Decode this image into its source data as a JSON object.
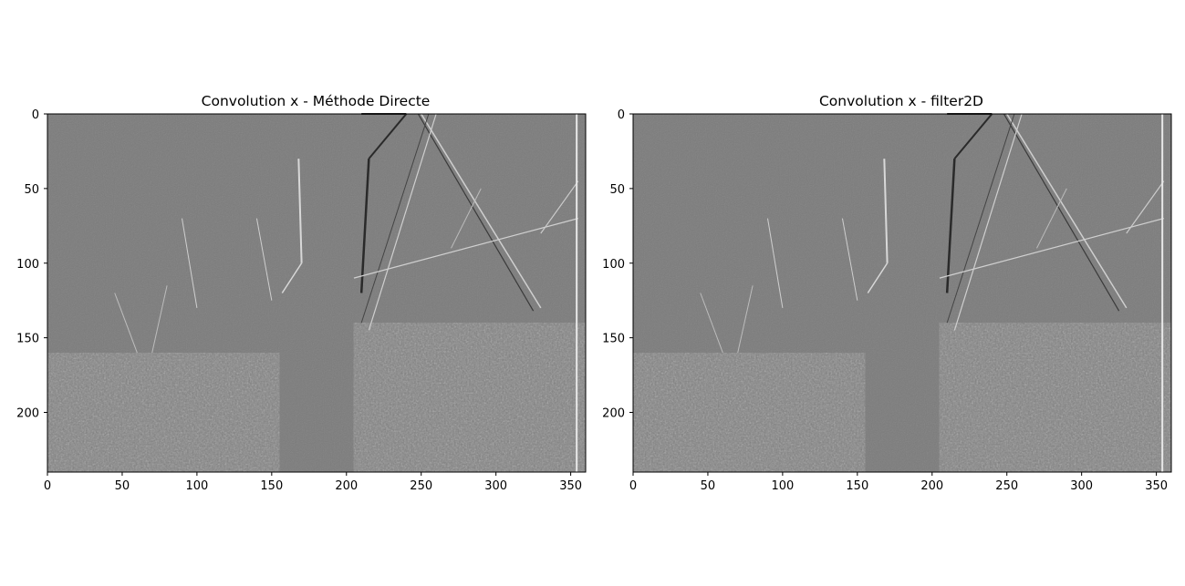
{
  "figure": {
    "background": "#ffffff",
    "image_gray": "#7b7b7b"
  },
  "chart_data": [
    {
      "type": "heatmap",
      "title": "Convolution x - Méthode Directe",
      "xlabel": "",
      "ylabel": "",
      "xlim": [
        0,
        360
      ],
      "ylim": [
        240,
        0
      ],
      "xticks": [
        "0",
        "50",
        "100",
        "150",
        "200",
        "250",
        "300",
        "350"
      ],
      "yticks": [
        "0",
        "50",
        "100",
        "150",
        "200"
      ],
      "grid": false,
      "image": "edge-filtered grayscale photo (x-direction convolution) of a garden scene with a tree trunk, house roof and bushes"
    },
    {
      "type": "heatmap",
      "title": "Convolution x - filter2D",
      "xlabel": "",
      "ylabel": "",
      "xlim": [
        0,
        360
      ],
      "ylim": [
        240,
        0
      ],
      "xticks": [
        "0",
        "50",
        "100",
        "150",
        "200",
        "250",
        "300",
        "350"
      ],
      "yticks": [
        "0",
        "50",
        "100",
        "150",
        "200"
      ],
      "grid": false,
      "image": "edge-filtered grayscale photo (x-direction convolution) of a garden scene with a tree trunk, house roof and bushes"
    }
  ]
}
